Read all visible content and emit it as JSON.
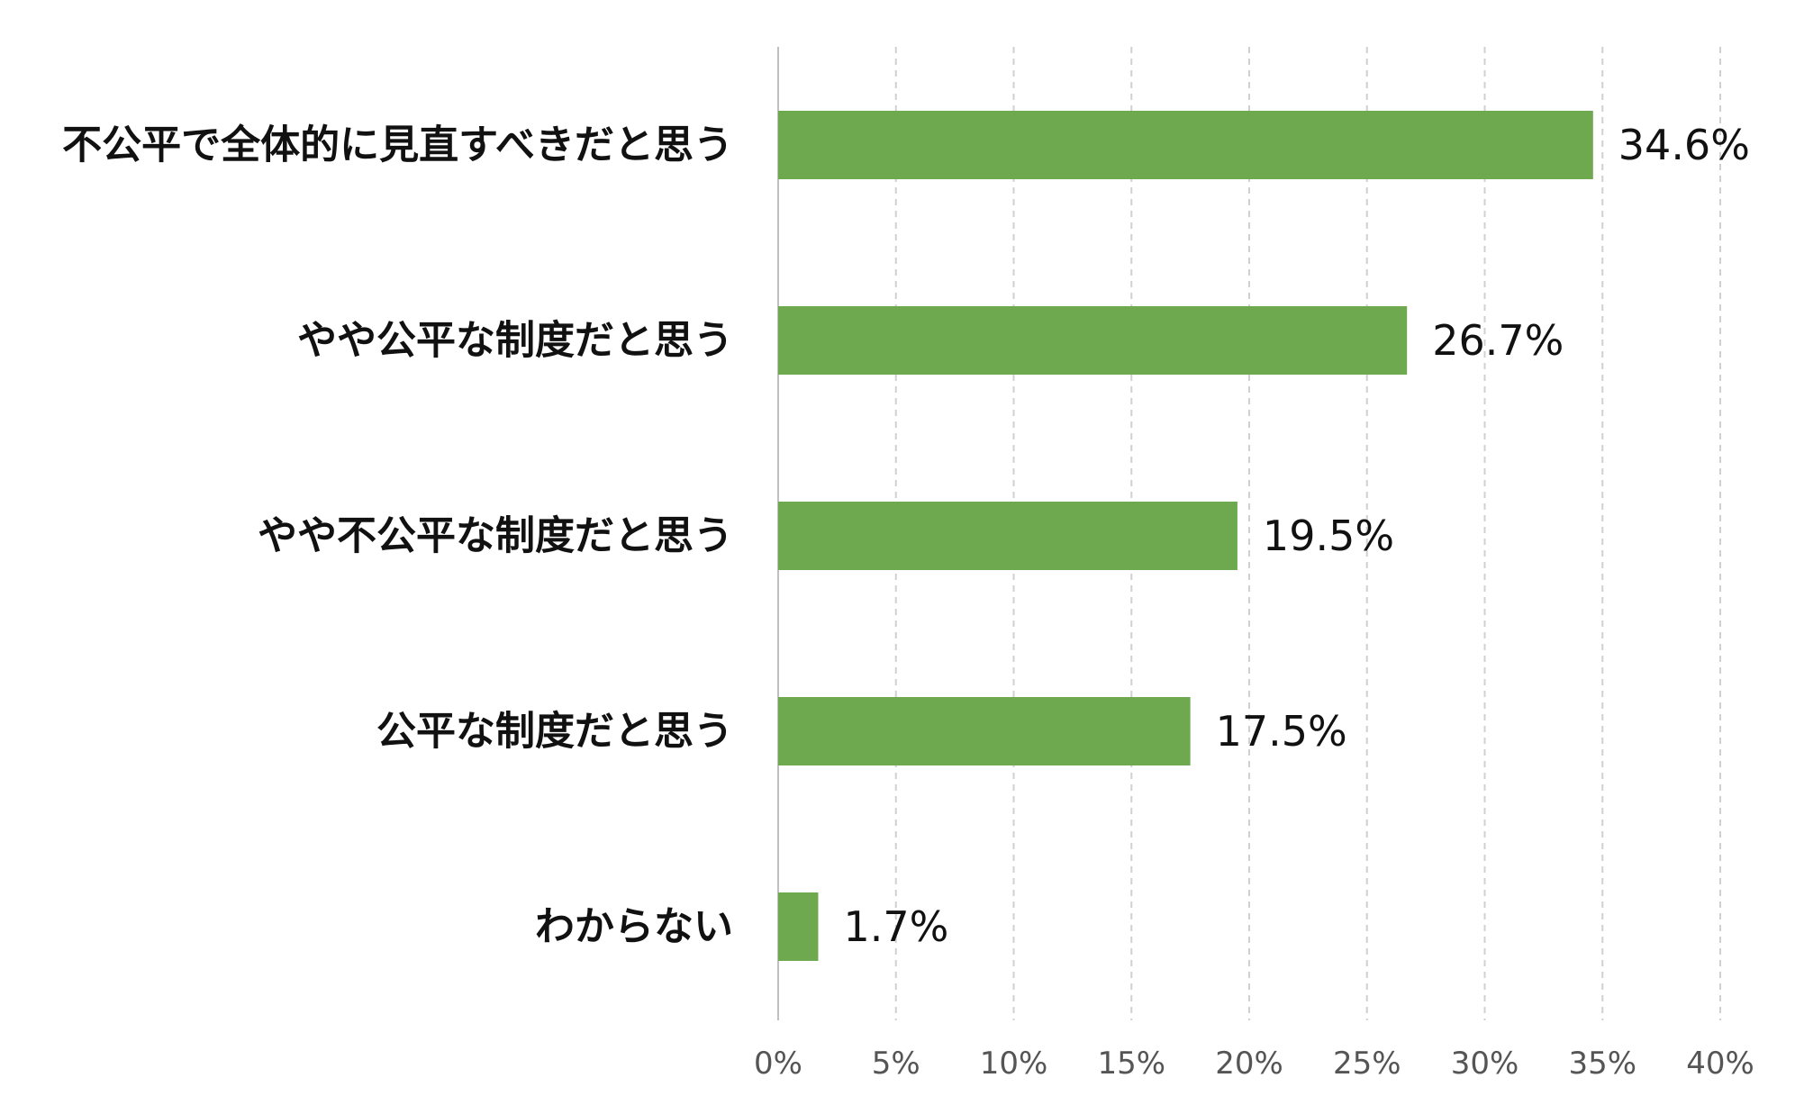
{
  "chart_data": {
    "type": "bar",
    "orientation": "horizontal",
    "categories": [
      "不公平で全体的に見直すべきだと思う",
      "やや公平な制度だと思う",
      "やや不公平な制度だと思う",
      "公平な制度だと思う",
      "わからない"
    ],
    "values": [
      34.6,
      26.7,
      19.5,
      17.5,
      1.7
    ],
    "value_labels": [
      "34.6%",
      "26.7%",
      "19.5%",
      "17.5%",
      "1.7%"
    ],
    "xlim": [
      0,
      40
    ],
    "x_ticks": [
      0,
      5,
      10,
      15,
      20,
      25,
      30,
      35,
      40
    ],
    "x_tick_labels": [
      "0%",
      "5%",
      "10%",
      "15%",
      "20%",
      "25%",
      "30%",
      "35%",
      "40%"
    ],
    "grid": "vertical dashed",
    "legend": "none",
    "colors": {
      "bar": "#6ea84f",
      "grid": "#d0d0d0",
      "axis": "#bfbfbf",
      "label": "#111111",
      "tick": "#555555"
    }
  }
}
